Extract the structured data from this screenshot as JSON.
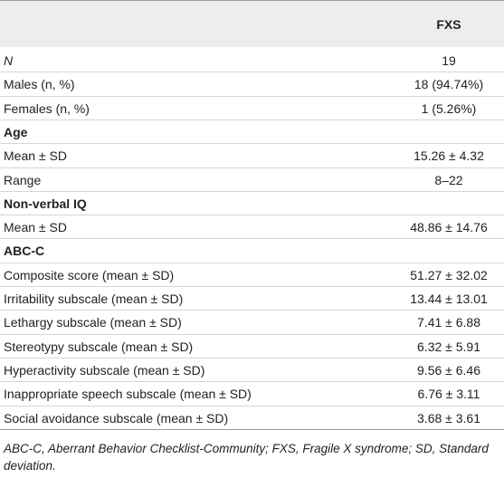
{
  "table": {
    "column_header": "FXS",
    "groups": [
      {
        "rows": [
          {
            "label": "N",
            "value": "19"
          },
          {
            "label": "Males (n, %)",
            "value": "18 (94.74%)"
          },
          {
            "label": "Females (n, %)",
            "value": "1 (5.26%)"
          }
        ]
      },
      {
        "heading": "Age",
        "rows": [
          {
            "label": "Mean ± SD",
            "value": "15.26 ± 4.32"
          },
          {
            "label": "Range",
            "value": "8–22"
          }
        ]
      },
      {
        "heading": "Non-verbal IQ",
        "rows": [
          {
            "label": "Mean ± SD",
            "value": "48.86 ± 14.76"
          }
        ]
      },
      {
        "heading": "ABC-C",
        "rows": [
          {
            "label": "Composite score (mean ± SD)",
            "value": "51.27 ± 32.02"
          },
          {
            "label": "Irritability subscale (mean ± SD)",
            "value": "13.44 ± 13.01"
          },
          {
            "label": "Lethargy subscale (mean ± SD)",
            "value": "7.41 ± 6.88"
          },
          {
            "label": "Stereotypy subscale (mean ± SD)",
            "value": "6.32 ± 5.91"
          },
          {
            "label": "Hyperactivity subscale (mean ± SD)",
            "value": "9.56 ± 6.46"
          },
          {
            "label": "Inappropriate speech subscale (mean ± SD)",
            "value": "6.76 ± 3.11"
          },
          {
            "label": "Social avoidance subscale (mean ± SD)",
            "value": "3.68 ± 3.61"
          }
        ]
      }
    ],
    "footnote": "ABC-C, Aberrant Behavior Checklist-Community; FXS, Fragile X syndrome; SD, Standard deviation."
  }
}
